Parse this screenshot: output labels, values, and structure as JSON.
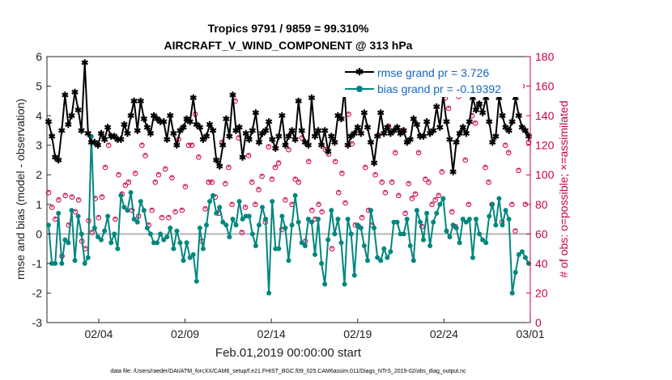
{
  "chart_data": {
    "type": "line",
    "title": "Tropics 9791 / 9859 = 99.310%",
    "subtitle": "AIRCRAFT_V_WIND_COMPONENT @ 313 hPa",
    "xlabel": "Feb.01,2019 00:00:00 start",
    "ylabel": "rmse and bias (model - observation)",
    "y2label": "# of obs: o=possible; ×=assimilated",
    "footnote": "data file: /Users/raeder/DAI/ATM_forcXX/CAM6_setup/f.e21.FHIST_BGC.f09_025.CAM6assim.011/Diags_NTrS_2019-02/obs_diag_output.nc",
    "xlim": [
      1,
      29
    ],
    "ylim": [
      -3,
      6
    ],
    "y2lim": [
      0,
      180
    ],
    "x_ticks": [
      4,
      9,
      14,
      19,
      24,
      29
    ],
    "x_tick_labels": [
      "02/04",
      "02/09",
      "02/14",
      "02/19",
      "02/24",
      "03/01"
    ],
    "y_ticks": [
      -3,
      -2,
      -1,
      0,
      1,
      2,
      3,
      4,
      5,
      6
    ],
    "y2_ticks": [
      0,
      20,
      40,
      60,
      80,
      100,
      120,
      140,
      160,
      180
    ],
    "legend_position": "top-right",
    "colors": {
      "rmse": "#000000",
      "bias": "#00877f",
      "obs": "#c8004a",
      "zero": "#b4b4b4"
    },
    "series": [
      {
        "name": "rmse grand pr = 3.726",
        "axis": "left",
        "color": "#000000",
        "values": [
          3.8,
          3.3,
          2.6,
          2.5,
          3.5,
          4.7,
          3.7,
          4.0,
          4.8,
          4.2,
          3.5,
          5.8,
          3.4,
          3.1,
          3.1,
          3.0,
          3.4,
          3.2,
          3.6,
          3.3,
          3.3,
          3.2,
          3.2,
          3.7,
          3.4,
          4.0,
          4.5,
          3.5,
          4.5,
          3.9,
          3.6,
          3.4,
          4.0,
          3.9,
          3.8,
          3.8,
          3.2,
          4.0,
          3.4,
          3.0,
          3.5,
          3.6,
          3.9,
          3.8,
          4.6,
          3.7,
          3.6,
          3.2,
          3.3,
          3.7,
          3.5,
          2.5,
          2.3,
          3.0,
          3.9,
          3.3,
          4.7,
          3.5,
          3.6,
          2.6,
          3.4,
          3.2,
          3.5,
          4.1,
          3.1,
          3.4,
          3.5,
          3.8,
          3.2,
          2.9,
          3.3,
          4.0,
          3.0,
          3.3,
          3.5,
          3.2,
          4.5,
          3.5,
          3.1,
          3.0,
          4.6,
          3.3,
          3.5,
          3.0,
          3.5,
          2.8,
          3.3,
          3.1,
          4.0,
          3.9,
          4.9,
          3.0,
          3.3,
          3.4,
          3.6,
          3.4,
          4.1,
          3.6,
          3.1,
          2.4,
          3.3,
          4.1,
          3.4,
          3.6,
          3.4,
          3.5,
          3.6,
          3.4,
          3.5,
          3.1,
          3.2,
          3.9,
          3.7,
          3.3,
          3.3,
          3.8,
          3.4,
          3.5,
          4.3,
          3.6,
          4.7,
          3.8,
          3.2,
          2.1,
          3.1,
          3.4,
          3.6,
          3.4,
          3.8,
          4.6,
          4.2,
          4.4,
          4.1,
          4.6,
          3.8,
          3.1,
          3.3,
          4.6,
          4.0,
          3.6,
          3.5,
          3.8,
          4.6,
          4.0,
          3.6,
          3.5,
          3.3
        ]
      },
      {
        "name": "bias grand pr = -0.19392",
        "axis": "left",
        "color": "#00877f",
        "values": [
          0.3,
          -1.0,
          -1.0,
          0.7,
          -1.0,
          -0.2,
          -0.3,
          0.8,
          -0.9,
          0.6,
          0.0,
          -1.0,
          -0.8,
          3.3,
          0.2,
          -0.1,
          -0.2,
          0.1,
          0.6,
          -0.3,
          0.0,
          -0.5,
          1.3,
          0.9,
          0.8,
          1.4,
          0.5,
          0.4,
          1.1,
          0.8,
          0.2,
          0.0,
          -0.3,
          -0.3,
          0.0,
          -0.2,
          -0.1,
          0.2,
          -0.5,
          0.1,
          -0.3,
          -0.9,
          -0.3,
          -0.8,
          -0.7,
          -1.6,
          0.2,
          -0.5,
          0.3,
          1.1,
          1.3,
          0.7,
          0.9,
          0.4,
          0.3,
          -0.1,
          0.5,
          0.3,
          1.1,
          0.5,
          0.6,
          0.6,
          0.0,
          -0.4,
          0.3,
          0.9,
          0.5,
          -2.0,
          1.1,
          -0.5,
          -0.5,
          0.6,
          0.2,
          -0.9,
          0.3,
          1.3,
          0.4,
          -0.3,
          -0.4,
          0.5,
          0.4,
          -0.7,
          0.5,
          -1.0,
          -1.7,
          -0.2,
          0.8,
          0.0,
          0.5,
          -0.3,
          -1.7,
          0.5,
          0.0,
          -1.4,
          0.3,
          0.2,
          -0.4,
          -0.9,
          0.8,
          0.2,
          -0.8,
          -0.9,
          -0.5,
          -0.8,
          -0.6,
          0.4,
          0.4,
          0.0,
          0.0,
          0.5,
          -0.4,
          -0.9,
          0.8,
          0.4,
          -0.2,
          0.7,
          -0.4,
          0.4,
          0.7,
          1.0,
          1.2,
          0.1,
          -0.1,
          0.3,
          0.2,
          -0.3,
          0.5,
          0.4,
          0.5,
          -0.8,
          0.5,
          0.0,
          -0.2,
          -0.3,
          0.6,
          1.0,
          0.3,
          1.2,
          0.3,
          0.8,
          0.5,
          -2.0,
          -1.3,
          -0.7,
          -0.6,
          -0.8,
          -1.0
        ]
      },
      {
        "name": "possible",
        "axis": "right",
        "color": "#c8004a",
        "values": [
          88,
          78,
          70,
          83,
          45,
          86,
          66,
          85,
          75,
          83,
          55,
          50,
          69,
          61,
          84,
          71,
          85,
          105,
          120,
          126,
          70,
          100,
          87,
          93,
          95,
          76,
          101,
          72,
          120,
          113,
          66,
          76,
          95,
          100,
          71,
          104,
          71,
          98,
          75,
          124,
          76,
          92,
          120,
          120,
          141,
          112,
          55,
          77,
          95,
          95,
          85,
          74,
          122,
          94,
          105,
          80,
          150,
          125,
          61,
          78,
          113,
          95,
          80,
          90,
          99,
          68,
          119,
          97,
          105,
          108,
          63,
          83,
          117,
          80,
          97,
          95,
          125,
          55,
          109,
          76,
          70,
          80,
          75,
          117,
          114,
          50,
          109,
          88,
          101,
          81,
          141,
          121,
          66,
          65,
          71,
          105,
          76,
          66,
          100,
          127,
          95,
          88,
          133,
          95,
          115,
          86,
          130,
          74,
          94,
          84,
          87,
          115,
          65,
          97,
          95,
          80,
          83,
          86,
          102,
          152,
          145,
          75,
          65,
          153,
          168,
          110,
          80,
          140,
          135,
          148,
          158,
          105,
          95,
          80,
          160,
          165,
          68,
          120,
          115,
          80,
          62,
          103,
          160,
          80,
          122
        ]
      },
      {
        "name": "assimilated",
        "axis": "right",
        "color": "#c8004a",
        "values": [
          88,
          78,
          70,
          83,
          45,
          86,
          66,
          85,
          75,
          83,
          55,
          50,
          69,
          61,
          84,
          71,
          85,
          105,
          120,
          126,
          70,
          100,
          87,
          93,
          95,
          76,
          101,
          72,
          120,
          113,
          66,
          76,
          95,
          100,
          71,
          104,
          71,
          98,
          75,
          124,
          76,
          92,
          120,
          120,
          141,
          112,
          55,
          77,
          95,
          95,
          85,
          74,
          122,
          94,
          105,
          80,
          150,
          125,
          61,
          78,
          113,
          95,
          80,
          90,
          99,
          68,
          119,
          97,
          105,
          108,
          63,
          83,
          117,
          80,
          97,
          95,
          125,
          55,
          109,
          76,
          70,
          80,
          75,
          117,
          114,
          50,
          109,
          88,
          101,
          81,
          141,
          121,
          66,
          65,
          71,
          105,
          76,
          66,
          100,
          127,
          95,
          88,
          133,
          95,
          115,
          86,
          130,
          74,
          94,
          84,
          87,
          115,
          65,
          97,
          95,
          80,
          83,
          86,
          102,
          152,
          145,
          75,
          65,
          153,
          168,
          110,
          80,
          140,
          135,
          148,
          158,
          105,
          95,
          80,
          160,
          165,
          68,
          120,
          115,
          80,
          62,
          103,
          160,
          80,
          122
        ]
      }
    ]
  }
}
